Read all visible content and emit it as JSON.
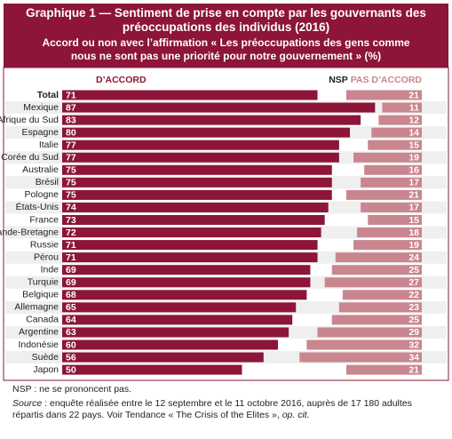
{
  "chart_data": {
    "type": "diverging-stacked-bar",
    "title": "Graphique 1 — Sentiment de prise en compte par les gouvernants des préoccupations des individus (2016)",
    "subtitle": "Accord ou non avec l’affirmation « Les préoccupations des gens comme nous ne sont pas une priorité pour notre gouvernement » (%)",
    "gap_label": "NSP",
    "categories": [
      "Total",
      "Mexique",
      "Afrique du Sud",
      "Espagne",
      "Italie",
      "Corée du Sud",
      "Australie",
      "Brésil",
      "Pologne",
      "États-Unis",
      "France",
      "Grande-Bretagne",
      "Russie",
      "Pérou",
      "Inde",
      "Turquie",
      "Belgique",
      "Allemagne",
      "Canada",
      "Argentine",
      "Indonésie",
      "Suède",
      "Japon"
    ],
    "xlim": [
      0,
      100
    ],
    "series": [
      {
        "name": "D’ACCORD",
        "color": "#8c1538",
        "values": [
          71,
          87,
          83,
          80,
          77,
          77,
          75,
          75,
          75,
          74,
          73,
          72,
          71,
          71,
          69,
          69,
          68,
          65,
          64,
          63,
          60,
          56,
          50
        ]
      },
      {
        "name": "PAS D’ACCORD",
        "color": "#c9868e",
        "values": [
          21,
          11,
          12,
          14,
          15,
          19,
          16,
          17,
          21,
          17,
          15,
          18,
          19,
          24,
          25,
          27,
          22,
          23,
          25,
          29,
          32,
          34,
          21
        ]
      }
    ]
  },
  "notes": {
    "nsp": "NSP : ne se prononcent pas.",
    "source_label": "Source",
    "source_text": ": enquête réalisée entre le 12 septembre et le 11 octobre 2016, auprès de 17 180 adultes répartis dans 22 pays. Voir Tendance « The Crisis of the Elites »,",
    "source_ref": "op. cit."
  }
}
